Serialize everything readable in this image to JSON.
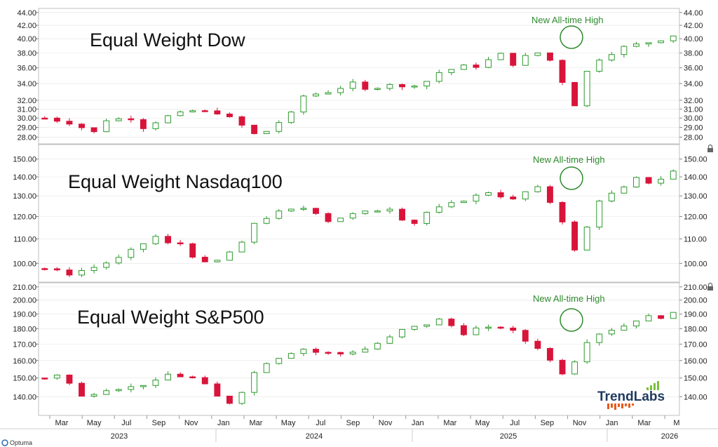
{
  "colors": {
    "up": "#2e9b2e",
    "down": "#d9143a",
    "note": "#2e8b2e",
    "grid": "#e4e4e4",
    "border": "#bfbfbf"
  },
  "chart_data": [
    {
      "type": "candlestick",
      "title": "Equal Weight Dow",
      "annotation": "New All-time High",
      "scale": "log",
      "ylim": [
        27.6,
        44.2
      ],
      "ticks": [
        28,
        29,
        30,
        31,
        32,
        34,
        36,
        38,
        40,
        42,
        44
      ],
      "tick_labels": [
        "28.00",
        "29.00",
        "30.00",
        "31.00",
        "32.00",
        "34.00",
        "36.00",
        "38.00",
        "40.00",
        "42.00",
        "44.00"
      ],
      "start": 30.0,
      "path": [
        [
          0,
          30.0
        ],
        [
          2,
          29.5
        ],
        [
          4,
          28.5
        ],
        [
          5,
          29.8
        ],
        [
          7,
          30.0
        ],
        [
          8,
          29.0
        ],
        [
          10,
          30.2
        ],
        [
          12,
          30.8
        ],
        [
          14,
          30.6
        ],
        [
          15,
          30.0
        ],
        [
          16,
          29.2
        ],
        [
          17,
          28.3
        ],
        [
          18,
          28.6
        ],
        [
          20,
          30.5
        ],
        [
          21,
          32.5
        ],
        [
          23,
          33.0
        ],
        [
          25,
          34.0
        ],
        [
          26,
          33.2
        ],
        [
          28,
          34.0
        ],
        [
          29,
          33.5
        ],
        [
          31,
          34.3
        ],
        [
          32,
          35.4
        ],
        [
          34,
          36.2
        ],
        [
          35,
          36.2
        ],
        [
          37,
          37.8
        ],
        [
          38,
          36.5
        ],
        [
          39,
          37.5
        ],
        [
          40,
          38.0
        ],
        [
          41,
          37.0
        ],
        [
          43,
          31.5
        ],
        [
          44,
          35.5
        ],
        [
          45,
          37.2
        ],
        [
          47,
          38.8
        ],
        [
          49,
          39.5
        ],
        [
          50,
          39.9
        ],
        [
          51,
          40.5
        ]
      ]
    },
    {
      "type": "candlestick",
      "title": "Equal Weight Nasdaq100",
      "annotation": "New All-time High",
      "scale": "log",
      "ylim": [
        94,
        157
      ],
      "ticks": [
        100,
        110,
        120,
        130,
        140,
        150
      ],
      "tick_labels": [
        "100.00",
        "110.00",
        "120.00",
        "130.00",
        "140.00",
        "150.00"
      ],
      "start": 98,
      "path": [
        [
          0,
          98
        ],
        [
          2,
          96
        ],
        [
          4,
          98.5
        ],
        [
          6,
          102
        ],
        [
          8,
          108
        ],
        [
          9,
          111
        ],
        [
          10,
          108
        ],
        [
          11,
          108
        ],
        [
          12,
          103
        ],
        [
          13,
          100
        ],
        [
          14,
          101
        ],
        [
          16,
          108
        ],
        [
          17,
          117
        ],
        [
          19,
          122
        ],
        [
          21,
          124
        ],
        [
          22,
          122
        ],
        [
          23,
          118
        ],
        [
          25,
          121
        ],
        [
          27,
          123
        ],
        [
          28,
          124
        ],
        [
          29,
          119
        ],
        [
          30,
          117
        ],
        [
          31,
          122
        ],
        [
          32,
          124
        ],
        [
          34,
          128
        ],
        [
          35,
          130
        ],
        [
          36,
          132
        ],
        [
          37,
          130
        ],
        [
          38,
          128
        ],
        [
          39,
          132
        ],
        [
          40,
          134
        ],
        [
          41,
          127
        ],
        [
          42,
          118
        ],
        [
          43,
          105
        ],
        [
          44,
          115
        ],
        [
          45,
          128
        ],
        [
          47,
          134
        ],
        [
          48,
          139
        ],
        [
          49,
          137
        ],
        [
          50,
          139
        ],
        [
          51,
          143
        ]
      ]
    },
    {
      "type": "candlestick",
      "title": "Equal Weight S&P500",
      "annotation": "New All-time High",
      "scale": "log",
      "ylim": [
        132,
        211
      ],
      "ticks": [
        140,
        150,
        160,
        170,
        180,
        190,
        200,
        210
      ],
      "tick_labels": [
        "140.00",
        "150.00",
        "160.00",
        "170.00",
        "180.00",
        "190.00",
        "200.00",
        "210.00"
      ],
      "start": 150,
      "path": [
        [
          0,
          150
        ],
        [
          1,
          152
        ],
        [
          2,
          147
        ],
        [
          3,
          140
        ],
        [
          5,
          144
        ],
        [
          7,
          145
        ],
        [
          9,
          148
        ],
        [
          10,
          152
        ],
        [
          12,
          150
        ],
        [
          13,
          146
        ],
        [
          14,
          140
        ],
        [
          15,
          137
        ],
        [
          16,
          143
        ],
        [
          17,
          153
        ],
        [
          18,
          159
        ],
        [
          20,
          165
        ],
        [
          21,
          167
        ],
        [
          22,
          165
        ],
        [
          24,
          164
        ],
        [
          26,
          167
        ],
        [
          28,
          174
        ],
        [
          29,
          179
        ],
        [
          31,
          183
        ],
        [
          32,
          186
        ],
        [
          33,
          182
        ],
        [
          34,
          177
        ],
        [
          35,
          180
        ],
        [
          36,
          180
        ],
        [
          37,
          181
        ],
        [
          38,
          178
        ],
        [
          39,
          172
        ],
        [
          40,
          168
        ],
        [
          41,
          160
        ],
        [
          42,
          153
        ],
        [
          43,
          160
        ],
        [
          44,
          172
        ],
        [
          45,
          177
        ],
        [
          47,
          182
        ],
        [
          48,
          186
        ],
        [
          49,
          188
        ],
        [
          50,
          188
        ],
        [
          51,
          190
        ]
      ]
    }
  ],
  "x_axis": {
    "months": [
      "Mar",
      "May",
      "Jul",
      "Sep",
      "Nov",
      "Jan",
      "Mar",
      "May",
      "Jul",
      "Sep",
      "Nov",
      "Jan",
      "Mar",
      "May",
      "Jul",
      "Sep",
      "Nov",
      "Jan",
      "Mar",
      "M"
    ],
    "years": [
      "2023",
      "2024",
      "2025",
      "2026"
    ]
  },
  "logo": {
    "part1": "Trend",
    "part2": "Labs"
  },
  "footer": {
    "brand": "Optuma"
  }
}
